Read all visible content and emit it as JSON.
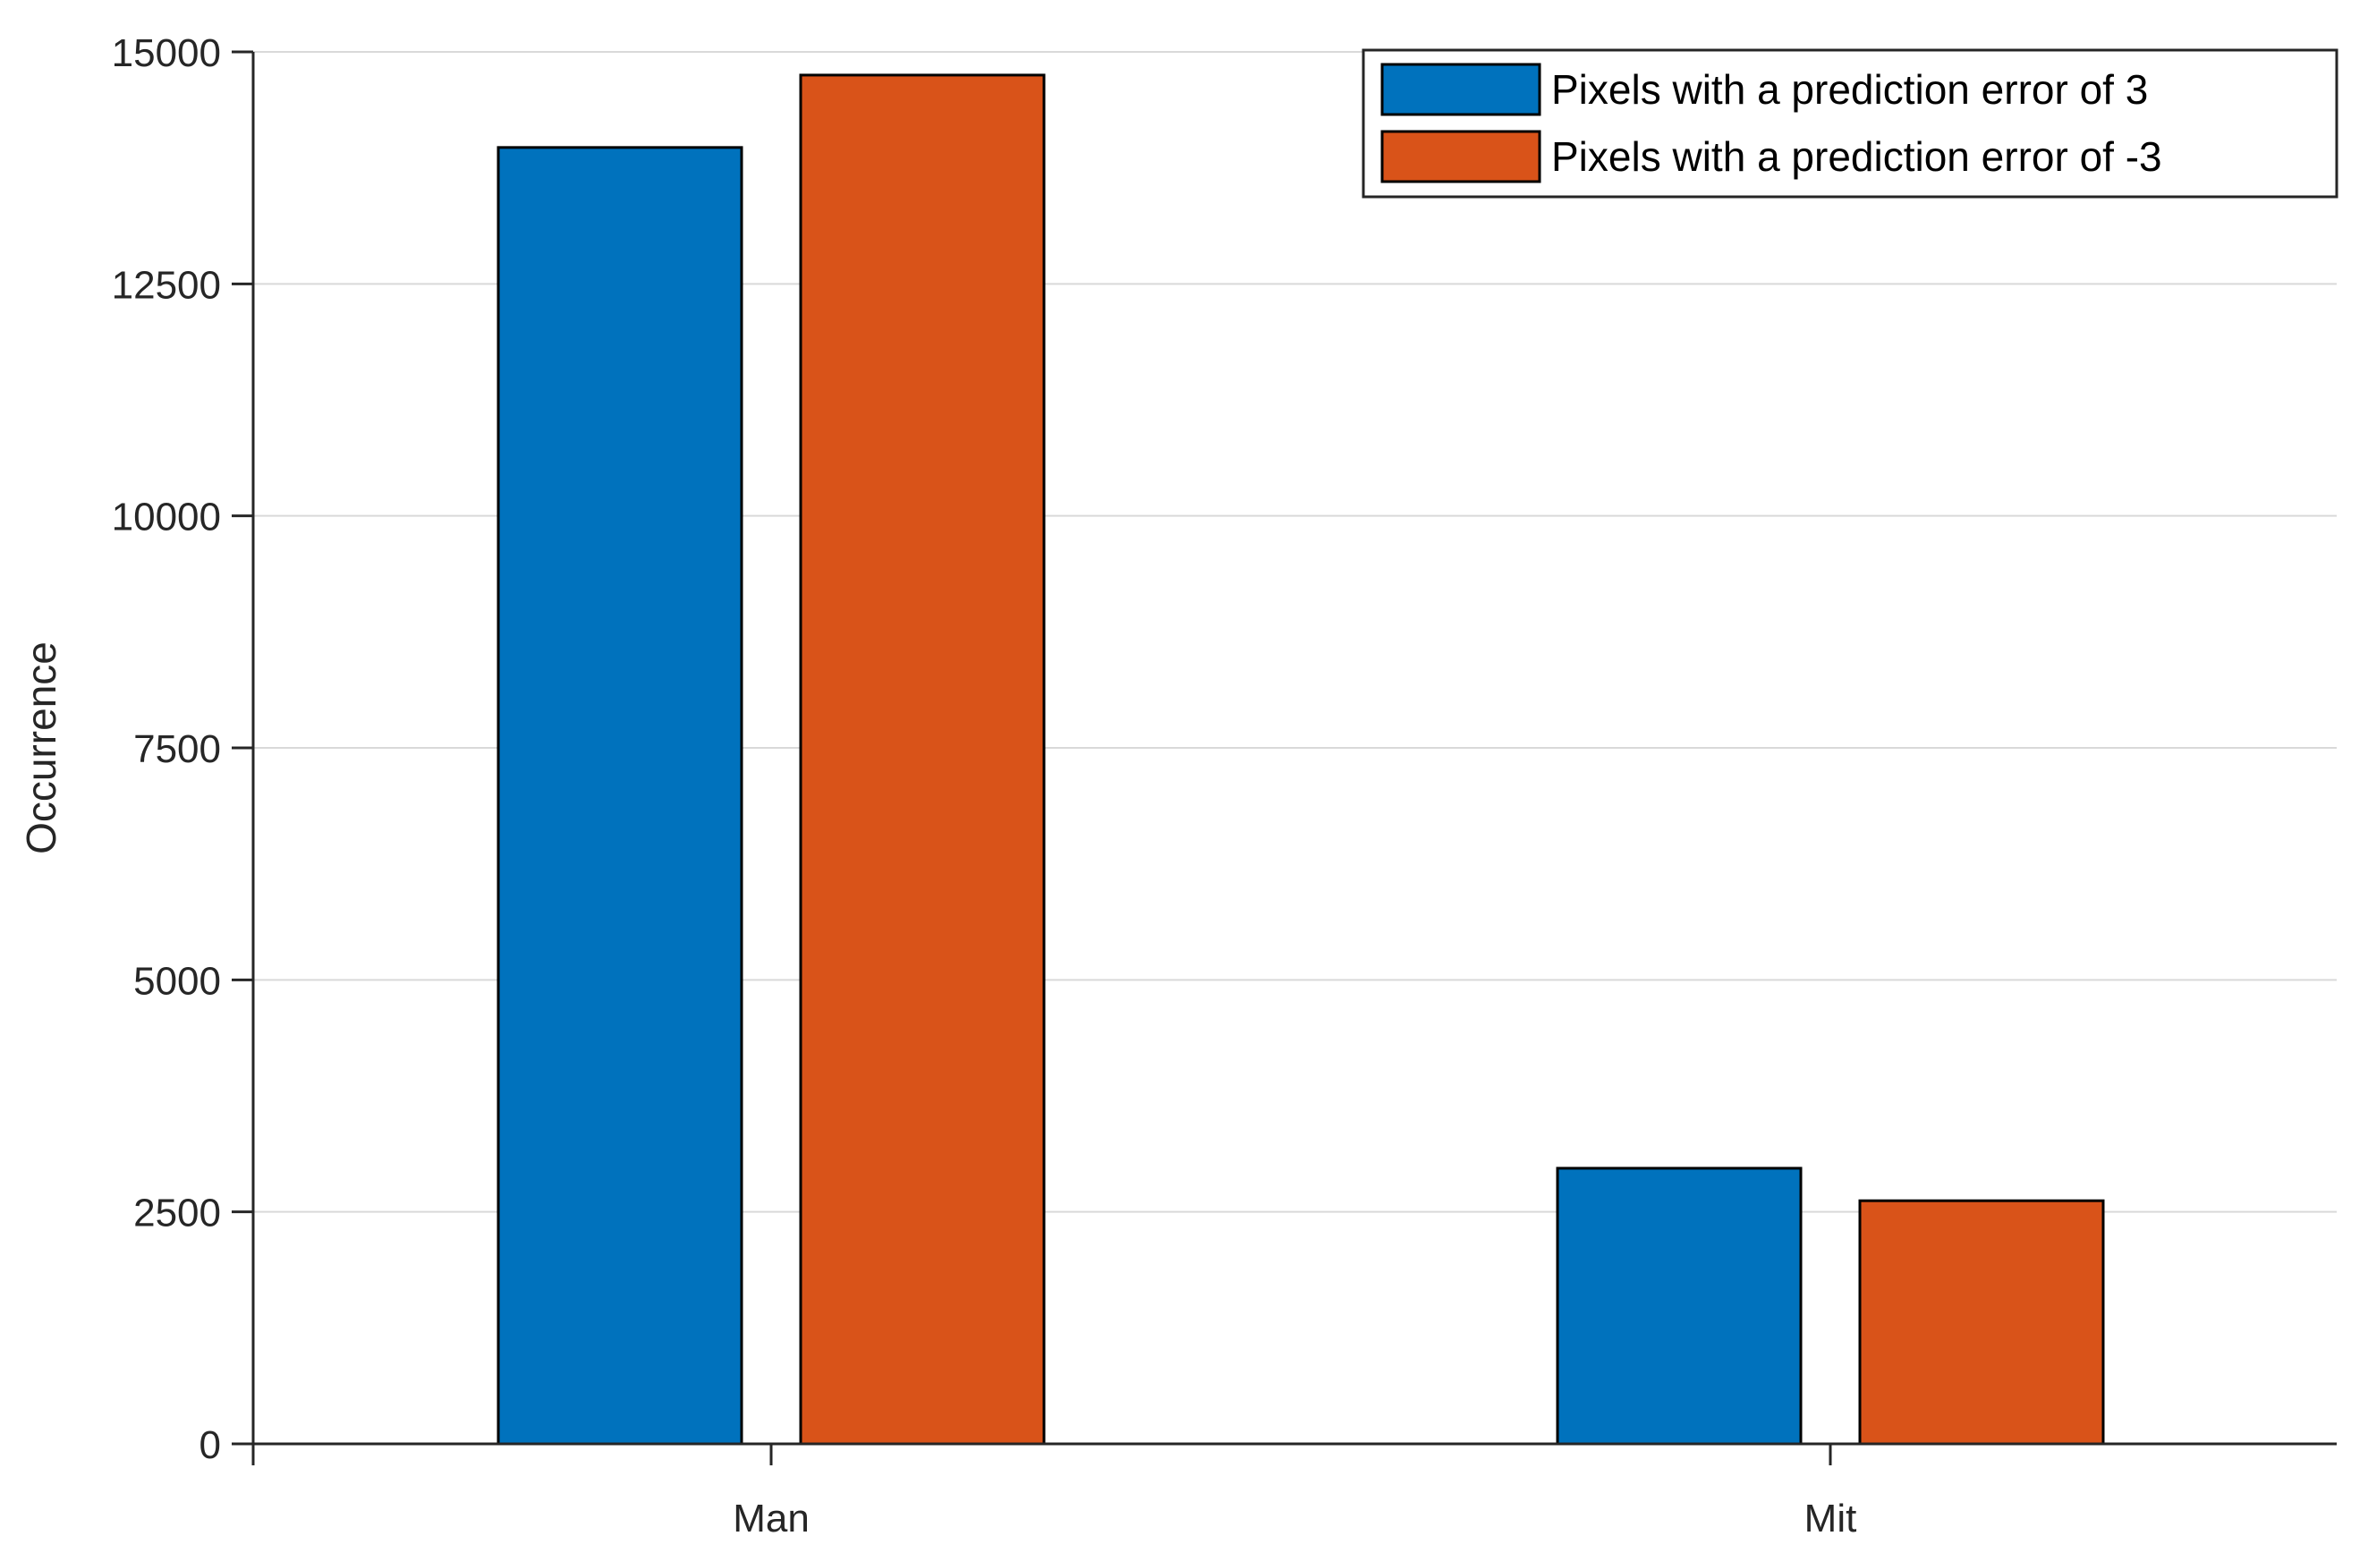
{
  "chart_data": {
    "type": "bar",
    "categories": [
      "Man",
      "Mit"
    ],
    "series": [
      {
        "name": "Pixels with a prediction error of 3",
        "values": [
          13970,
          2970
        ],
        "color": "#0072BD"
      },
      {
        "name": "Pixels with a prediction error of -3",
        "values": [
          14750,
          2620
        ],
        "color": "#D95319"
      }
    ],
    "title": "",
    "xlabel": "",
    "ylabel": "Occurrence",
    "ylim": [
      0,
      15000
    ],
    "yticks": [
      0,
      2500,
      5000,
      7500,
      10000,
      12500,
      15000
    ],
    "grid": "horizontal",
    "legend_position": "top-right"
  }
}
